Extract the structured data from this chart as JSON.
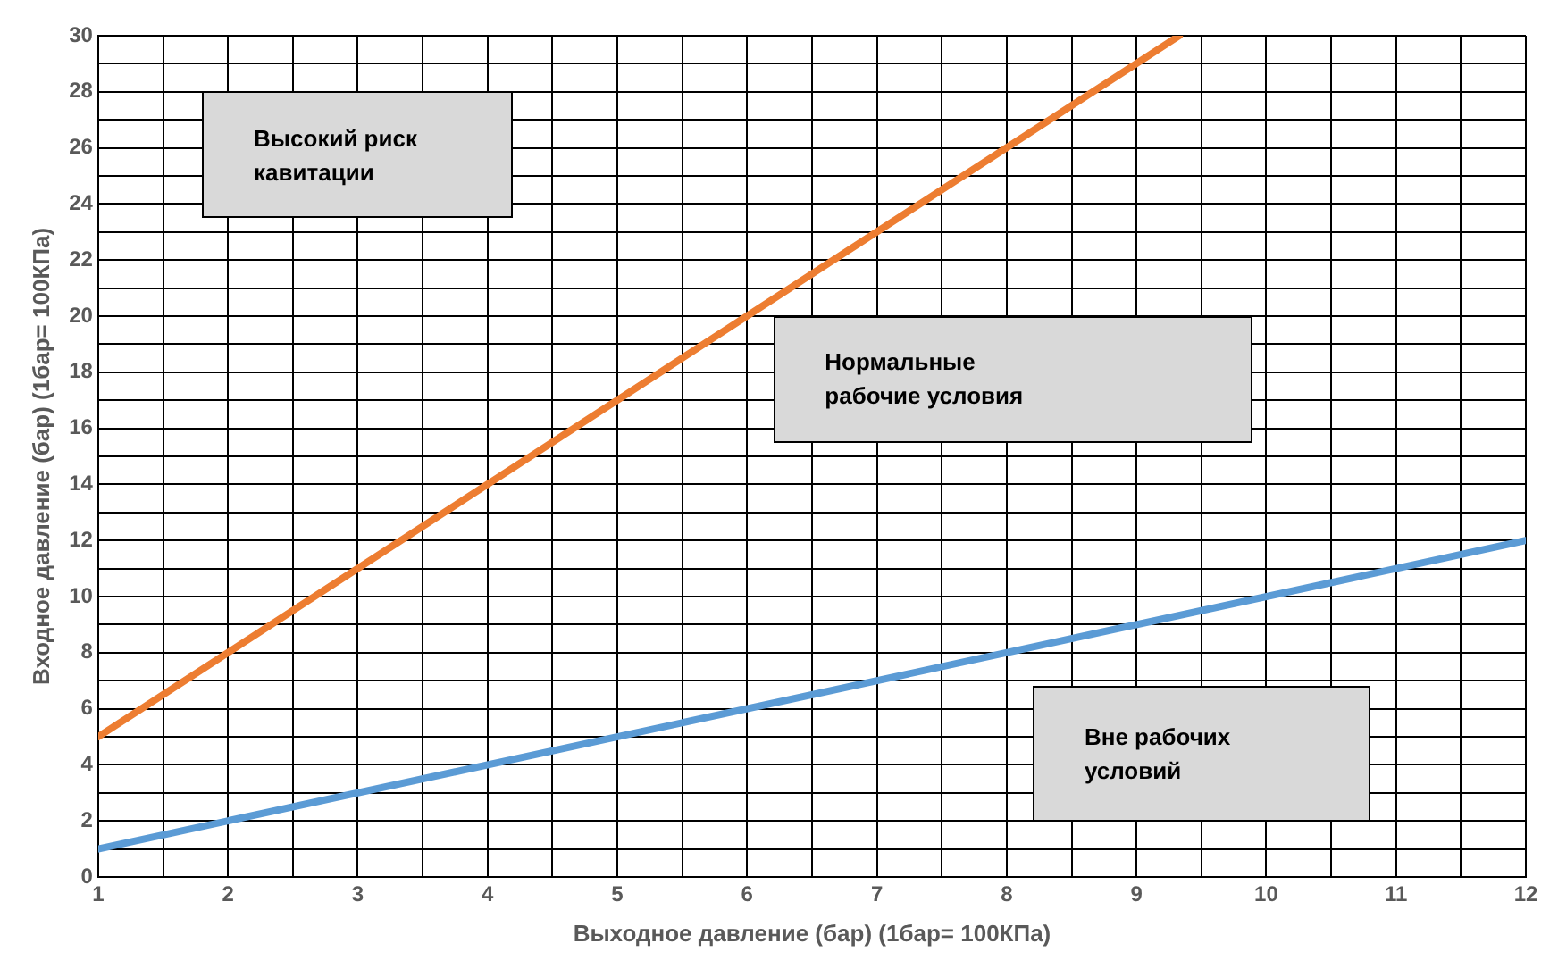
{
  "chart_data": {
    "type": "line",
    "xlabel": "Выходное давление (бар) (1бар= 100КПа)",
    "ylabel": "Входное давление (бар) (1бар= 100КПа)",
    "series": [
      {
        "color": "#ed7d31",
        "x": [
          1,
          9.33
        ],
        "values": [
          5,
          30
        ]
      },
      {
        "color": "#5b9bd5",
        "x": [
          1,
          12
        ],
        "values": [
          1,
          12
        ]
      }
    ],
    "xlim": [
      1,
      12
    ],
    "xticks": [
      1,
      {
        "value": 1.5,
        "label": null
      },
      2,
      {
        "value": 2.5,
        "label": null
      },
      3,
      {
        "value": 3.5,
        "label": null
      },
      4,
      {
        "value": 4.5,
        "label": null
      },
      5,
      {
        "value": 5.5,
        "label": null
      },
      6,
      {
        "value": 6.5,
        "label": null
      },
      7,
      {
        "value": 7.5,
        "label": null
      },
      8,
      {
        "value": 8.5,
        "label": null
      },
      9,
      {
        "value": 9.5,
        "label": null
      },
      10,
      {
        "value": 10.5,
        "label": null
      },
      11,
      {
        "value": 11.5,
        "label": null
      },
      12
    ],
    "ylim": [
      0,
      30
    ],
    "yticks": [
      0,
      {
        "value": 1,
        "label": null
      },
      2,
      {
        "value": 3,
        "label": null
      },
      4,
      {
        "value": 5,
        "label": null
      },
      6,
      {
        "value": 7,
        "label": null
      },
      8,
      {
        "value": 9,
        "label": null
      },
      10,
      {
        "value": 11,
        "label": null
      },
      12,
      {
        "value": 13,
        "label": null
      },
      14,
      {
        "value": 15,
        "label": null
      },
      16,
      {
        "value": 17,
        "label": null
      },
      18,
      {
        "value": 19,
        "label": null
      },
      20,
      {
        "value": 21,
        "label": null
      },
      22,
      {
        "value": 23,
        "label": null
      },
      24,
      {
        "value": 25,
        "label": null
      },
      26,
      {
        "value": 27,
        "label": null
      },
      28,
      {
        "value": 29,
        "label": null
      },
      30
    ],
    "grid": true,
    "legend": false,
    "marker": "none",
    "line_style": "solid",
    "annotations": [
      "Высокий риск кавитации",
      "Нормальные рабочие условия",
      "Вне рабочих условий"
    ]
  }
}
